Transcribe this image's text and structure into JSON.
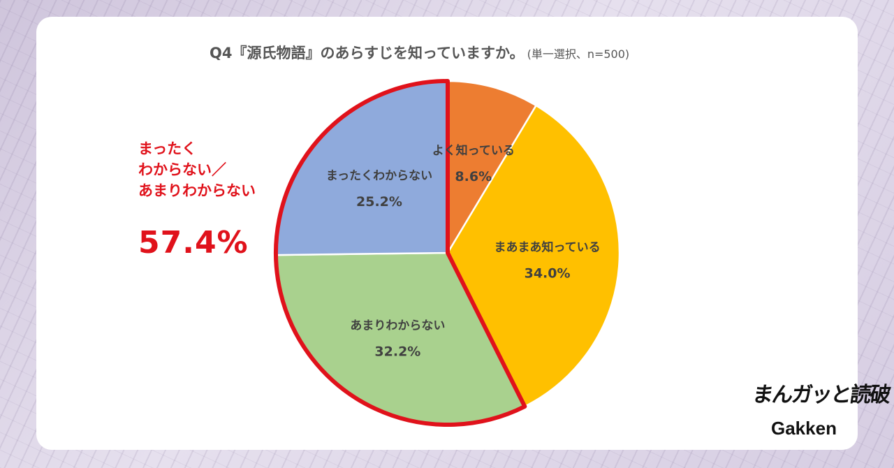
{
  "chart_data": {
    "type": "pie",
    "title": "Q4『源氏物語』のあらすじを知っていますか。",
    "subtitle": "(単一選択、n=500)",
    "slices": [
      {
        "label": "よく知っている",
        "value": 8.6,
        "display": "8.6%",
        "color": "#ed7d31"
      },
      {
        "label": "まあまあ知っている",
        "value": 34.0,
        "display": "34.0%",
        "color": "#ffc000"
      },
      {
        "label": "あまりわからない",
        "value": 32.2,
        "display": "32.2%",
        "color": "#a9d18e"
      },
      {
        "label": "まったくわからない",
        "value": 25.2,
        "display": "25.2%",
        "color": "#8faadc"
      }
    ],
    "highlight": {
      "slices": [
        "あまりわからない",
        "まったくわからない"
      ],
      "label_lines": [
        "まったく",
        "わからない／",
        "あまりわからない"
      ],
      "value": "57.4%",
      "color": "#e0121b"
    }
  },
  "logos": {
    "brand": "まんガッと読破",
    "publisher": "Gakken"
  }
}
